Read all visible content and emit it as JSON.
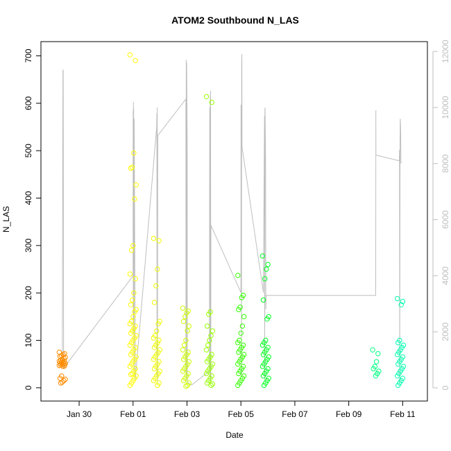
{
  "chart_data": {
    "type": "scatter",
    "title": "ATOM2 Southbound N_LAS",
    "xlabel": "Date",
    "ylabel": "N_LAS",
    "x_ticks": [
      "Jan 30",
      "Feb 01",
      "Feb 03",
      "Feb 05",
      "Feb 07",
      "Feb 09",
      "Feb 11"
    ],
    "y_ticks": [
      "0",
      "100",
      "200",
      "300",
      "400",
      "500",
      "600",
      "700"
    ],
    "y2_ticks": [
      "0",
      "2000",
      "4000",
      "6000",
      "8000",
      "10000",
      "12000"
    ],
    "xlim_days": [
      "Jan 28 14:00",
      "Feb 11 22:00"
    ],
    "ylim": [
      -28,
      730
    ],
    "y2lim": [
      -470,
      12350
    ],
    "secondary_series_color": "#bebebe",
    "clusters": [
      {
        "date": "Jan 29 09:00",
        "color": "#ff8c00",
        "values": [
          75,
          72,
          70,
          68,
          66,
          64,
          62,
          60,
          58,
          56,
          55,
          54,
          53,
          52,
          51,
          50,
          49,
          48,
          47,
          46,
          45,
          25,
          20,
          18,
          15,
          12,
          10
        ]
      },
      {
        "date": "Feb 01 00:00",
        "color": "#ffff00",
        "values": [
          702,
          690,
          495,
          465,
          463,
          428,
          398,
          300,
          290,
          240,
          230,
          200,
          185,
          175,
          165,
          160,
          150,
          140,
          135,
          130,
          125,
          120,
          115,
          110,
          105,
          100,
          95,
          90,
          85,
          80,
          75,
          70,
          65,
          60,
          55,
          50,
          45,
          40,
          35,
          30,
          28,
          25,
          20,
          15,
          10,
          5
        ]
      },
      {
        "date": "Feb 01 21:00",
        "color": "#f0ff00",
        "values": [
          315,
          310,
          250,
          215,
          180,
          140,
          135,
          120,
          110,
          105,
          100,
          95,
          90,
          85,
          80,
          75,
          70,
          65,
          60,
          55,
          50,
          45,
          40,
          35,
          30,
          25,
          20,
          15,
          10,
          5
        ]
      },
      {
        "date": "Feb 02 23:00",
        "color": "#ccff00",
        "values": [
          168,
          162,
          158,
          150,
          140,
          130,
          120,
          100,
          90,
          80,
          75,
          70,
          65,
          60,
          55,
          50,
          45,
          40,
          35,
          30,
          25,
          20,
          15,
          10,
          5,
          3
        ]
      },
      {
        "date": "Feb 03 20:00",
        "color": "#99ff00",
        "values": [
          614,
          602,
          160,
          155,
          130,
          120,
          110,
          100,
          90,
          80,
          70,
          65,
          60,
          55,
          50,
          45,
          40,
          35,
          30,
          25,
          20,
          15,
          10,
          8,
          5
        ]
      },
      {
        "date": "Feb 05 00:00",
        "color": "#33ff00",
        "values": [
          237,
          195,
          190,
          170,
          165,
          150,
          130,
          115,
          100,
          95,
          90,
          85,
          80,
          75,
          70,
          65,
          60,
          55,
          50,
          45,
          40,
          35,
          30,
          25,
          20,
          15,
          10,
          5
        ]
      },
      {
        "date": "Feb 05 22:00",
        "color": "#00ff20",
        "values": [
          278,
          260,
          250,
          230,
          185,
          150,
          145,
          100,
          95,
          90,
          85,
          80,
          75,
          70,
          65,
          60,
          55,
          50,
          45,
          40,
          35,
          30,
          25,
          20,
          15,
          10,
          5
        ]
      },
      {
        "date": "Feb 10 00:00",
        "color": "#00ff80",
        "values": [
          80,
          72,
          55,
          45,
          40,
          35,
          30,
          25
        ]
      },
      {
        "date": "Feb 10 22:00",
        "color": "#00ffb0",
        "values": [
          188,
          182,
          175,
          100,
          95,
          90,
          85,
          80,
          75,
          70,
          65,
          60,
          55,
          50,
          45,
          40,
          35,
          30,
          25,
          20,
          15,
          10,
          5
        ]
      }
    ],
    "secondary_line": [
      [
        "Jan 29 09:00",
        1000
      ],
      [
        "Jan 29 09:36",
        11300
      ],
      [
        "Jan 29 09:48",
        11350
      ],
      [
        "Jan 29 10:12",
        700
      ],
      [
        "Feb 01 00:00",
        4000
      ],
      [
        "Feb 01 00:06",
        9900
      ],
      [
        "Feb 01 00:12",
        2000
      ],
      [
        "Feb 01 00:18",
        10200
      ],
      [
        "Feb 01 00:24",
        3000
      ],
      [
        "Feb 01 00:30",
        10000
      ],
      [
        "Feb 01 00:36",
        9600
      ],
      [
        "Feb 01 00:42",
        6000
      ],
      [
        "Feb 01 00:48",
        500
      ],
      [
        "Feb 01 01:00",
        9600
      ],
      [
        "Feb 01 02:00",
        300
      ],
      [
        "Feb 01 21:00",
        9300
      ],
      [
        "Feb 01 21:12",
        9800
      ],
      [
        "Feb 01 21:18",
        400
      ],
      [
        "Feb 01 21:30",
        10000
      ],
      [
        "Feb 01 21:42",
        200
      ],
      [
        "Feb 01 22:00",
        9000
      ],
      [
        "Feb 02 23:00",
        10300
      ],
      [
        "Feb 02 23:06",
        500
      ],
      [
        "Feb 02 23:18",
        11700
      ],
      [
        "Feb 02 23:30",
        300
      ],
      [
        "Feb 02 23:42",
        11600
      ],
      [
        "Feb 03 00:12",
        8700
      ],
      [
        "Feb 03 00:20",
        200
      ],
      [
        "Feb 03 04:00",
        100
      ],
      [
        "Feb 03 20:00",
        600
      ],
      [
        "Feb 03 20:12",
        9500
      ],
      [
        "Feb 03 20:20",
        10000
      ],
      [
        "Feb 03 20:30",
        300
      ],
      [
        "Feb 03 20:42",
        10400
      ],
      [
        "Feb 03 20:50",
        200
      ],
      [
        "Feb 03 21:00",
        10600
      ],
      [
        "Feb 03 21:12",
        300
      ],
      [
        "Feb 03 21:20",
        5800
      ],
      [
        "Feb 05 00:00",
        3400
      ],
      [
        "Feb 05 00:06",
        10100
      ],
      [
        "Feb 05 00:12",
        8800
      ],
      [
        "Feb 05 00:20",
        9700
      ],
      [
        "Feb 05 00:30",
        400
      ],
      [
        "Feb 05 00:42",
        11500
      ],
      [
        "Feb 05 00:50",
        11900
      ],
      [
        "Feb 05 01:00",
        8600
      ],
      [
        "Feb 05 20:00",
        3400
      ],
      [
        "Feb 05 21:00",
        9700
      ],
      [
        "Feb 05 21:10",
        300
      ],
      [
        "Feb 05 21:20",
        9900
      ],
      [
        "Feb 05 21:30",
        10000
      ],
      [
        "Feb 05 22:00",
        8000
      ],
      [
        "Feb 05 22:10",
        2800
      ],
      [
        "Feb 05 22:30",
        3300
      ],
      [
        "Feb 10 00:00",
        3300
      ],
      [
        "Feb 10 00:06",
        9900
      ],
      [
        "Feb 10 00:12",
        8300
      ],
      [
        "Feb 10 21:00",
        8100
      ],
      [
        "Feb 10 21:10",
        8500
      ],
      [
        "Feb 10 21:20",
        200
      ],
      [
        "Feb 10 21:40",
        8800
      ],
      [
        "Feb 10 21:50",
        9600
      ],
      [
        "Feb 10 22:10",
        9300
      ],
      [
        "Feb 10 22:30",
        8000
      ]
    ]
  }
}
